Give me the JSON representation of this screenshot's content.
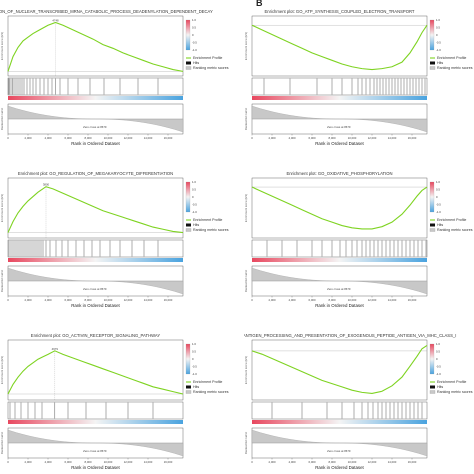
{
  "panel_letters": {
    "left": "",
    "right": "B"
  },
  "shared": {
    "x_axis_label": "Rank in Ordered Dataset",
    "x_ticks": [
      "0",
      "2,000",
      "4,000",
      "6,000",
      "8,000",
      "10,000",
      "12,000",
      "14,000",
      "16,000"
    ],
    "y_label_es": "Enrichment score (ES)",
    "y_label_rank": "Ranked list metric",
    "zero_cross": "Zero cross at 8679",
    "legend": {
      "profile": "Enrichment Profile",
      "hits": "Hits",
      "ranking": "Ranking metric scores"
    },
    "colorbar_ticks": [
      "1.0",
      "0.5",
      "0",
      "-0.5",
      "-1.0"
    ],
    "colors": {
      "profile": "#7ed321",
      "heat_pos": "#e8485f",
      "heat_neg": "#4aa3df",
      "ranking": "#c8c8c8"
    }
  },
  "chart_data": [
    {
      "type": "line",
      "id": "A1",
      "title": "REGULATION_OF_NUCLEAR_TRANSCRIBED_MRNA_CATABOLIC_PROCESS_DEADENYLATION_DEPENDENT_DECAY",
      "peak_label": "4748",
      "x": [
        0,
        500,
        1000,
        1500,
        2000,
        2500,
        3000,
        3500,
        4000,
        4748,
        5500,
        6500,
        7500,
        8500,
        9500,
        10500,
        11500,
        12500,
        13500,
        14500,
        15500,
        16500,
        17500
      ],
      "y": [
        0,
        0.16,
        0.26,
        0.33,
        0.37,
        0.41,
        0.44,
        0.47,
        0.5,
        0.53,
        0.5,
        0.45,
        0.4,
        0.35,
        0.29,
        0.25,
        0.2,
        0.16,
        0.12,
        0.08,
        0.05,
        0.02,
        0
      ],
      "ylim": [
        -0.05,
        0.6
      ],
      "hits": [
        50,
        150,
        300,
        450,
        600,
        800,
        1000,
        1200,
        1400,
        1600,
        1900,
        2200,
        2500,
        2800,
        3200,
        3600,
        4000,
        4400,
        4748,
        5200,
        6000,
        7000,
        8200,
        9600,
        11200,
        13000,
        15000
      ]
    },
    {
      "type": "line",
      "id": "B1",
      "title": "Enrichment plot: GO_ATP_SYNTHESIS_COUPLED_ELECTRON_TRANSPORT",
      "peak_label": "",
      "x": [
        0,
        1000,
        2000,
        3000,
        4000,
        5000,
        6000,
        7000,
        8000,
        9000,
        10000,
        11000,
        12000,
        13000,
        14000,
        15000,
        15800,
        16500,
        17000,
        17500
      ],
      "y": [
        0,
        -0.05,
        -0.1,
        -0.15,
        -0.2,
        -0.25,
        -0.3,
        -0.34,
        -0.38,
        -0.42,
        -0.45,
        -0.47,
        -0.48,
        -0.47,
        -0.45,
        -0.4,
        -0.3,
        -0.18,
        -0.08,
        0
      ],
      "ylim": [
        -0.55,
        0.1
      ],
      "hits": [
        1200,
        3800,
        6500,
        8000,
        9000,
        10000,
        10600,
        11000,
        11400,
        11800,
        12200,
        12500,
        12800,
        13100,
        13400,
        13700,
        14000,
        14300,
        14600,
        14900,
        15200,
        15500,
        15800,
        16100,
        16400,
        16700,
        17000,
        17300
      ]
    },
    {
      "type": "line",
      "id": "A2",
      "title": "Enrichment plot: GO_REGULATION_OF_MEGAKARYOCYTE_DIFFERENTIATION",
      "peak_label": "3800",
      "x": [
        0,
        500,
        1000,
        1500,
        2000,
        2500,
        3000,
        3800,
        4500,
        5500,
        6500,
        7500,
        8500,
        9500,
        10500,
        11500,
        12500,
        13500,
        14500,
        15500,
        16500,
        17500
      ],
      "y": [
        0,
        0.1,
        0.18,
        0.24,
        0.29,
        0.33,
        0.37,
        0.42,
        0.4,
        0.36,
        0.32,
        0.28,
        0.24,
        0.2,
        0.17,
        0.14,
        0.11,
        0.08,
        0.05,
        0.03,
        0.01,
        0
      ],
      "ylim": [
        -0.05,
        0.5
      ],
      "hits": [
        100,
        300,
        500,
        700,
        900,
        1100,
        1300,
        1500,
        1700,
        1900,
        2100,
        2300,
        2500,
        2700,
        2900,
        3100,
        3300,
        3500,
        3800,
        4200,
        4800,
        5400,
        6000,
        6800,
        7600,
        8400,
        9200,
        10200,
        11200,
        12400,
        13600,
        15000
      ]
    },
    {
      "type": "line",
      "id": "B2",
      "title": "Enrichment plot: GO_OXIDATIVE_PHOSPHORYLATION",
      "peak_label": "",
      "x": [
        0,
        1000,
        2000,
        3000,
        4000,
        5000,
        6000,
        7000,
        8000,
        9000,
        10000,
        11000,
        12000,
        13000,
        14000,
        15000,
        15800,
        16500,
        17000,
        17500
      ],
      "y": [
        0,
        -0.04,
        -0.08,
        -0.12,
        -0.16,
        -0.2,
        -0.24,
        -0.28,
        -0.31,
        -0.34,
        -0.36,
        -0.37,
        -0.37,
        -0.35,
        -0.31,
        -0.24,
        -0.16,
        -0.08,
        -0.03,
        0
      ],
      "ylim": [
        -0.45,
        0.08
      ],
      "hits": [
        1500,
        3000,
        4500,
        6000,
        7000,
        8000,
        8800,
        9400,
        10000,
        10500,
        11000,
        11400,
        11800,
        12200,
        12600,
        13000,
        13400,
        13800,
        14200,
        14600,
        15000,
        15400,
        15800,
        16200,
        16600,
        17000,
        17400
      ]
    },
    {
      "type": "line",
      "id": "A3",
      "title": "Enrichment plot: GO_ACTIVIN_RECEPTOR_SIGNALING_PATHWAY",
      "peak_label": "4679",
      "x": [
        0,
        500,
        1000,
        1500,
        2000,
        2500,
        3000,
        3500,
        4000,
        4679,
        5500,
        6500,
        7500,
        8500,
        9500,
        10500,
        11500,
        12500,
        13500,
        14500,
        15500,
        16500,
        17500
      ],
      "y": [
        0,
        0.08,
        0.14,
        0.19,
        0.23,
        0.26,
        0.29,
        0.31,
        0.33,
        0.36,
        0.33,
        0.3,
        0.27,
        0.24,
        0.21,
        0.18,
        0.15,
        0.12,
        0.09,
        0.06,
        0.04,
        0.02,
        0
      ],
      "ylim": [
        -0.05,
        0.45
      ],
      "hits": [
        200,
        700,
        1300,
        2000,
        2700,
        3400,
        4679,
        6000,
        7800,
        9800,
        12000,
        14500
      ]
    },
    {
      "type": "line",
      "id": "B3",
      "title": "t plot: GO_ANTIGEN_PROCESSING_AND_PRESENTATION_OF_EXOGENOUS_PEPTIDE_ANTIGEN_VIA_MHC_CLASS_I",
      "peak_label": "",
      "x": [
        0,
        1000,
        2000,
        3000,
        4000,
        5000,
        6000,
        7000,
        8000,
        9000,
        10000,
        11000,
        12000,
        13000,
        14000,
        15000,
        15800,
        16500,
        17000,
        17500
      ],
      "y": [
        0,
        -0.03,
        -0.07,
        -0.11,
        -0.15,
        -0.19,
        -0.23,
        -0.27,
        -0.3,
        -0.33,
        -0.36,
        -0.38,
        -0.39,
        -0.37,
        -0.32,
        -0.24,
        -0.14,
        -0.05,
        0.02,
        0.05
      ],
      "ylim": [
        -0.45,
        0.1
      ],
      "hits": [
        2000,
        5000,
        7500,
        9000,
        10200,
        11000,
        11600,
        12100,
        12600,
        13000,
        13400,
        13800,
        14200,
        14600,
        15000,
        15400,
        15800,
        16200,
        16600,
        17000
      ]
    }
  ]
}
